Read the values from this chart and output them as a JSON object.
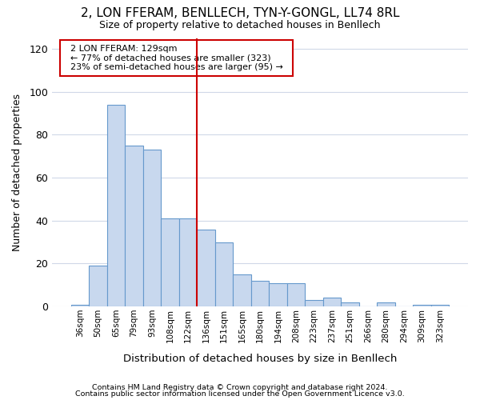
{
  "title": "2, LON FFERAM, BENLLECH, TYN-Y-GONGL, LL74 8RL",
  "subtitle": "Size of property relative to detached houses in Benllech",
  "xlabel": "Distribution of detached houses by size in Benllech",
  "ylabel": "Number of detached properties",
  "categories": [
    "36sqm",
    "50sqm",
    "65sqm",
    "79sqm",
    "93sqm",
    "108sqm",
    "122sqm",
    "136sqm",
    "151sqm",
    "165sqm",
    "180sqm",
    "194sqm",
    "208sqm",
    "223sqm",
    "237sqm",
    "251sqm",
    "266sqm",
    "280sqm",
    "294sqm",
    "309sqm",
    "323sqm"
  ],
  "values": [
    1,
    19,
    94,
    75,
    73,
    41,
    41,
    36,
    30,
    15,
    12,
    11,
    11,
    3,
    4,
    2,
    0,
    2,
    0,
    1,
    1
  ],
  "bar_color": "#c8d8ee",
  "bar_edge_color": "#6699cc",
  "highlight_line_label": "2 LON FFERAM: 129sqm",
  "annotation_line1": "← 77% of detached houses are smaller (323)",
  "annotation_line2": "23% of semi-detached houses are larger (95) →",
  "vline_color": "#cc0000",
  "box_edge_color": "#cc0000",
  "background_color": "#ffffff",
  "grid_color": "#d0d8e8",
  "footer1": "Contains HM Land Registry data © Crown copyright and database right 2024.",
  "footer2": "Contains public sector information licensed under the Open Government Licence v3.0.",
  "ylim": [
    0,
    125
  ],
  "yticks": [
    0,
    20,
    40,
    60,
    80,
    100,
    120
  ],
  "vline_index": 7
}
